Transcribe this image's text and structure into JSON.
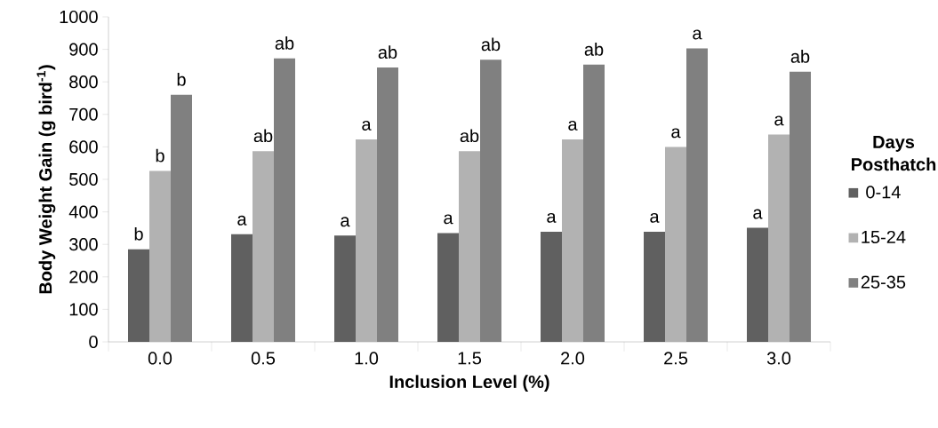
{
  "chart_data": {
    "type": "bar",
    "xlabel": "Inclusion Level (%)",
    "ylabel": "Body Weight Gain (g bird$^{-1}$)",
    "legend_title": "Days Posthatch",
    "categories": [
      "0.0",
      "0.5",
      "1.0",
      "1.5",
      "2.0",
      "2.5",
      "3.0"
    ],
    "ylim": [
      0,
      1000
    ],
    "yticks": [
      0,
      100,
      200,
      300,
      400,
      500,
      600,
      700,
      800,
      900,
      1000
    ],
    "grid": false,
    "legend": "right",
    "series": [
      {
        "name": "0-14",
        "color": "#606060",
        "values": [
          285,
          331,
          327,
          335,
          339,
          339,
          351
        ],
        "value_labels": [
          "b",
          "a",
          "a",
          "a",
          "a",
          "a",
          "a"
        ]
      },
      {
        "name": "15-24",
        "color": "#b2b2b2",
        "values": [
          526,
          587,
          623,
          587,
          623,
          600,
          638
        ],
        "value_labels": [
          "b",
          "ab",
          "a",
          "ab",
          "a",
          "a",
          "a"
        ]
      },
      {
        "name": "25-35",
        "color": "#808080",
        "values": [
          760,
          872,
          844,
          868,
          853,
          903,
          831
        ],
        "value_labels": [
          "b",
          "ab",
          "ab",
          "ab",
          "ab",
          "a",
          "ab"
        ]
      }
    ]
  }
}
